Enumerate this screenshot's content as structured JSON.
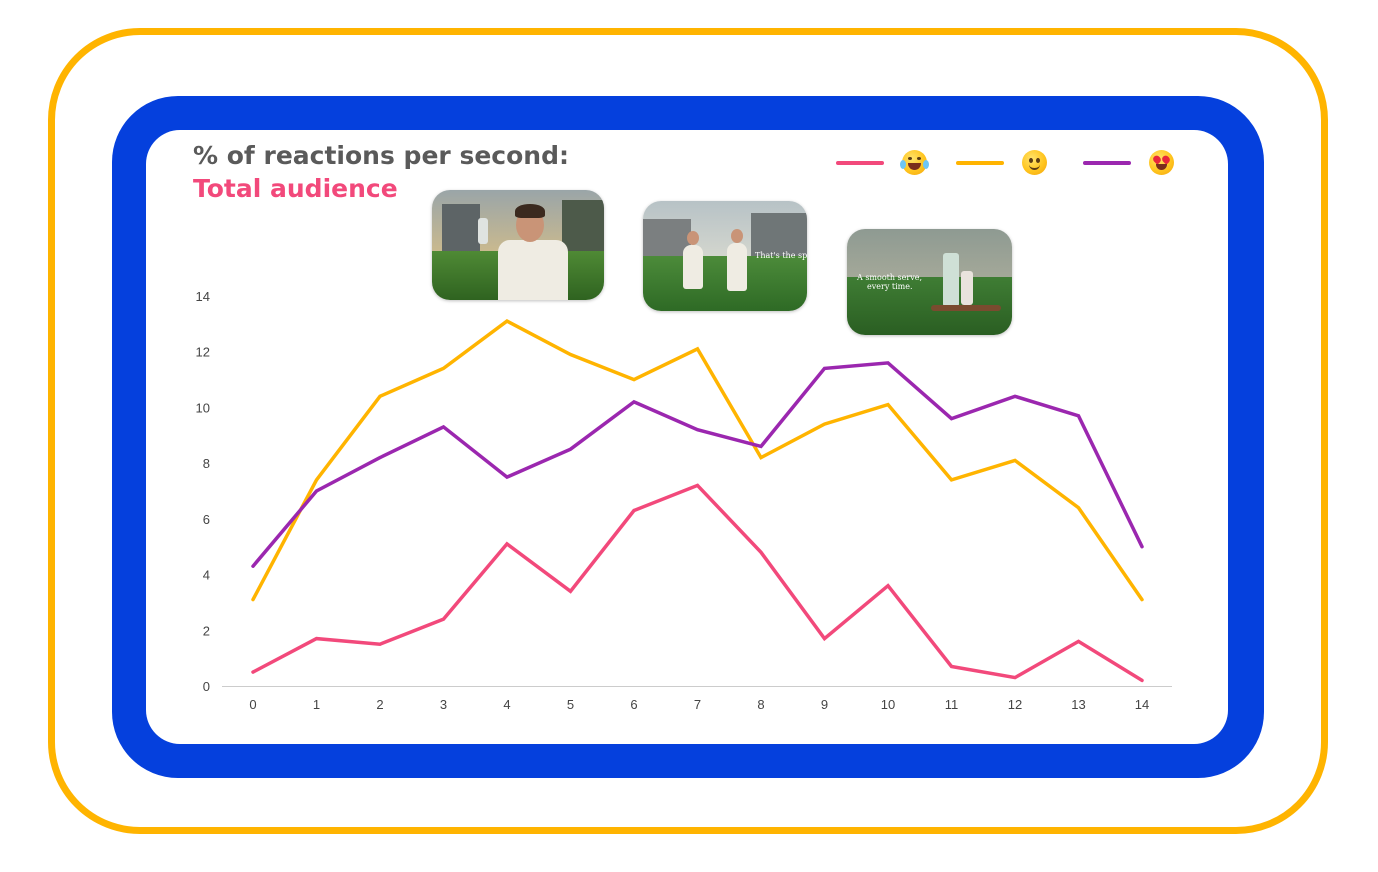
{
  "header": {
    "title": "% of reactions per second:",
    "subtitle": "Total audience"
  },
  "legend": [
    {
      "series": "laughing",
      "icon": "laughing-tears-emoji-icon",
      "color": "#F2497B"
    },
    {
      "series": "smiling",
      "icon": "slight-smile-emoji-icon",
      "color": "#FFB400"
    },
    {
      "series": "heart-eyes",
      "icon": "heart-eyes-emoji-icon",
      "color": "#9B27AF"
    }
  ],
  "thumbnails": [
    {
      "icon": "man-holding-bottle-thumbnail"
    },
    {
      "icon": "couple-on-tennis-court-thumbnail",
      "caption": "That's the spirit."
    },
    {
      "icon": "bottle-on-tennis-court-thumbnail",
      "caption_line1": "A smooth serve,",
      "caption_line2": "every time."
    }
  ],
  "chart_data": {
    "type": "line",
    "title": "% of reactions per second:",
    "subtitle": "Total audience",
    "x": [
      0,
      1,
      2,
      3,
      4,
      5,
      6,
      7,
      8,
      9,
      10,
      11,
      12,
      13,
      14
    ],
    "ylim": [
      0,
      14
    ],
    "yticks": [
      0,
      2,
      4,
      6,
      8,
      10,
      12,
      14
    ],
    "grid": false,
    "legend_position": "top-right",
    "series": [
      {
        "key": "laughing",
        "color": "#F2497B",
        "values": [
          0.5,
          1.7,
          1.5,
          2.4,
          5.1,
          3.4,
          6.3,
          7.2,
          4.8,
          1.7,
          3.6,
          0.7,
          0.3,
          1.6,
          0.2
        ]
      },
      {
        "key": "smiling",
        "color": "#FFB400",
        "values": [
          3.1,
          7.4,
          10.4,
          11.4,
          13.1,
          11.9,
          11.0,
          12.1,
          8.2,
          9.4,
          10.1,
          7.4,
          8.1,
          6.4,
          3.1
        ]
      },
      {
        "key": "heart-eyes",
        "color": "#9B27AF",
        "values": [
          4.3,
          7.0,
          8.2,
          9.3,
          7.5,
          8.5,
          10.2,
          9.2,
          8.6,
          11.4,
          11.6,
          9.6,
          10.4,
          9.7,
          5.0
        ]
      }
    ]
  },
  "colors": {
    "outer_frame": "#FFB400",
    "inner_frame": "#0540DD",
    "title": "#5A5A5A",
    "subtitle": "#F2497B"
  }
}
